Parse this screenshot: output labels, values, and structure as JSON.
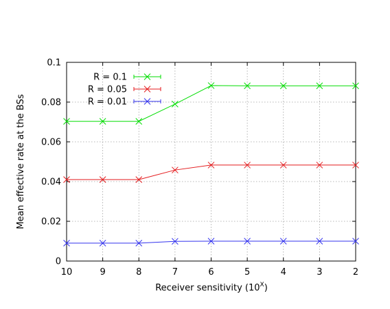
{
  "chart_data": {
    "type": "line",
    "x": [
      10,
      9,
      8,
      7,
      6,
      5,
      4,
      3,
      2
    ],
    "xticks": [
      "10",
      "9",
      "8",
      "7",
      "6",
      "5",
      "4",
      "3",
      "2"
    ],
    "xlim": [
      10,
      2
    ],
    "xlabel_main": "Receiver sensitivity (10",
    "xlabel_sup": "X",
    "xlabel_close": ")",
    "ylabel": "Mean effective rate at the BSs",
    "ylim": [
      0,
      0.1
    ],
    "yticks": [
      "0",
      "0.02",
      "0.04",
      "0.06",
      "0.08",
      "0.1"
    ],
    "grid": true,
    "legend_position": "top-left",
    "series": [
      {
        "name": "R = 0.1",
        "color": "#00dd00",
        "marker": "x",
        "values": [
          0.0703,
          0.0703,
          0.0703,
          0.079,
          0.0883,
          0.0882,
          0.0882,
          0.0882,
          0.0882
        ]
      },
      {
        "name": "R = 0.05",
        "color": "#e41a1c",
        "marker": "x",
        "values": [
          0.041,
          0.041,
          0.041,
          0.0458,
          0.0483,
          0.0483,
          0.0483,
          0.0483,
          0.0483
        ]
      },
      {
        "name": "R = 0.01",
        "color": "#3333ee",
        "marker": "x",
        "values": [
          0.009,
          0.009,
          0.009,
          0.0099,
          0.01,
          0.01,
          0.01,
          0.01,
          0.01
        ]
      }
    ]
  }
}
